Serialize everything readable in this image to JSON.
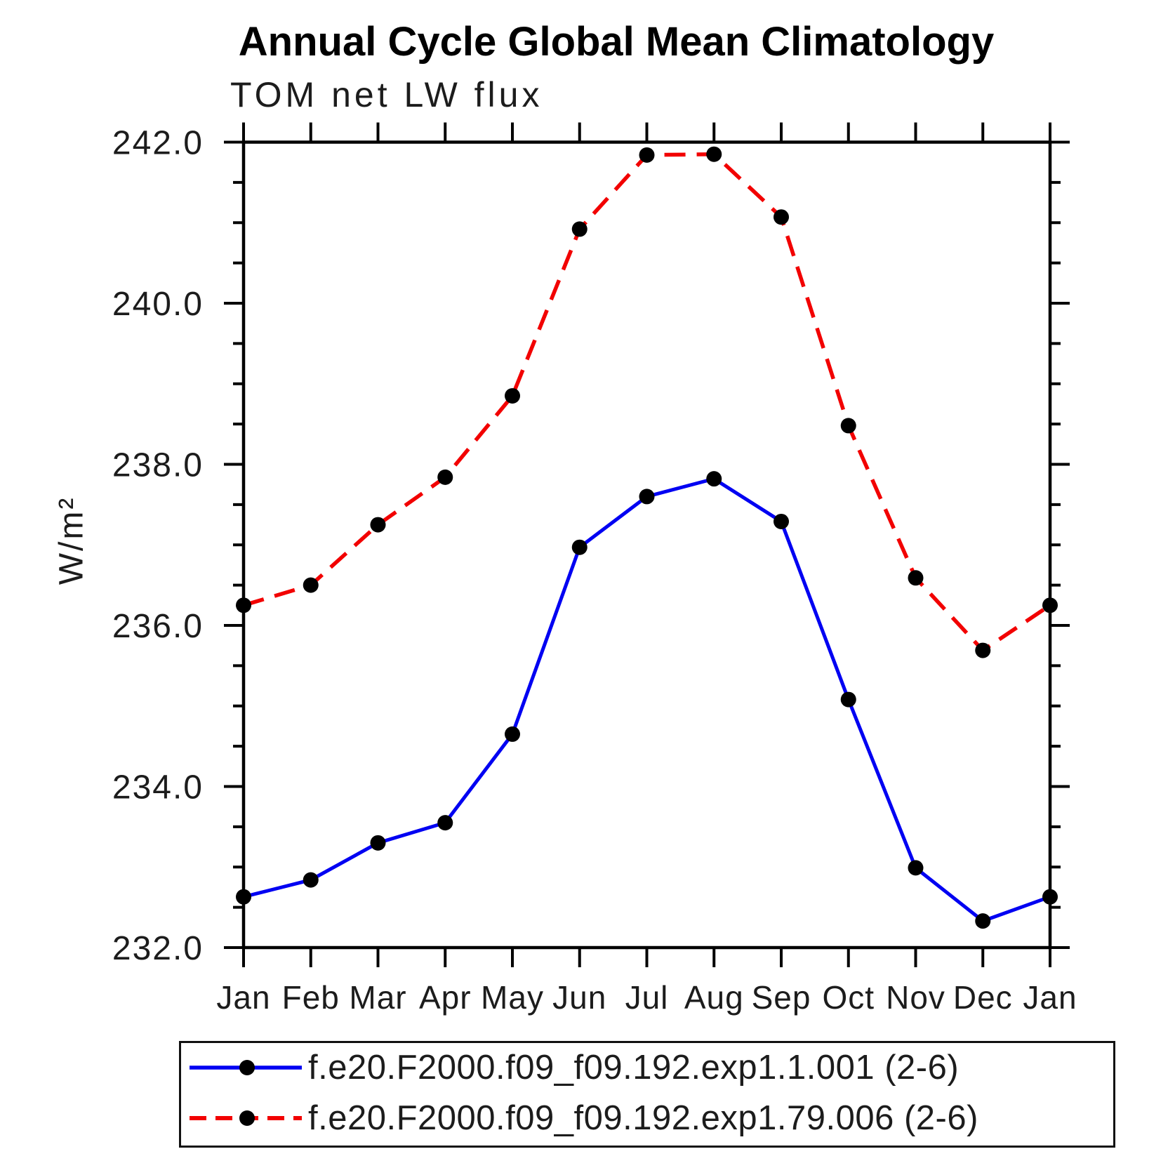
{
  "chart_data": {
    "type": "line",
    "title": "Annual Cycle Global Mean Climatology",
    "subtitle": "TOM net LW flux",
    "ylabel": "W/m²",
    "x_categories": [
      "Jan",
      "Feb",
      "Mar",
      "Apr",
      "May",
      "Jun",
      "Jul",
      "Aug",
      "Sep",
      "Oct",
      "Nov",
      "Dec",
      "Jan"
    ],
    "ylim": [
      232.0,
      242.0
    ],
    "ytick_major_step": 2.0,
    "ytick_minor_step": 0.5,
    "ytick_labels": [
      "232.0",
      "234.0",
      "236.0",
      "238.0",
      "240.0",
      "242.0"
    ],
    "grid": false,
    "legend_position": "bottom-box",
    "series": [
      {
        "name": "f.e20.F2000.f09_f09.192.exp1.1.001 (2-6)",
        "color": "#0000f2",
        "line_style": "solid",
        "marker": "filled-circle",
        "marker_color": "#000000",
        "values": [
          232.63,
          232.84,
          233.3,
          233.55,
          234.65,
          236.97,
          237.6,
          237.82,
          237.29,
          235.08,
          232.99,
          232.33,
          232.63
        ]
      },
      {
        "name": "f.e20.F2000.f09_f09.192.exp1.79.006 (2-6)",
        "color": "#f20000",
        "line_style": "dashed",
        "marker": "filled-circle",
        "marker_color": "#000000",
        "values": [
          236.25,
          236.5,
          237.25,
          237.84,
          238.85,
          240.92,
          241.84,
          241.85,
          241.07,
          238.48,
          236.59,
          235.69,
          236.25
        ]
      }
    ]
  }
}
